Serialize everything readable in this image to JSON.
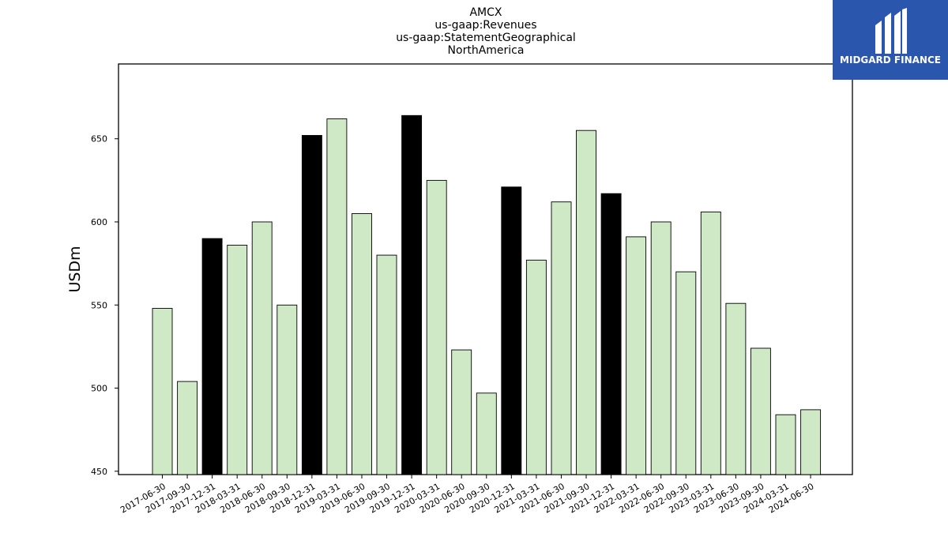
{
  "chart_data": {
    "type": "bar",
    "title_lines": [
      "AMCX",
      "us-gaap:Revenues",
      "us-gaap:StatementGeographical",
      "NorthAmerica"
    ],
    "xlabel": "",
    "ylabel": "USDm",
    "ylim": [
      448,
      695
    ],
    "yticks": [
      450,
      500,
      550,
      600,
      650
    ],
    "grid": false,
    "categories": [
      "2017-06-30",
      "2017-09-30",
      "2017-12-31",
      "2018-03-31",
      "2018-06-30",
      "2018-09-30",
      "2018-12-31",
      "2019-03-31",
      "2019-06-30",
      "2019-09-30",
      "2019-12-31",
      "2020-03-31",
      "2020-06-30",
      "2020-09-30",
      "2020-12-31",
      "2021-03-31",
      "2021-06-30",
      "2021-09-30",
      "2021-12-31",
      "2022-03-31",
      "2022-06-30",
      "2022-09-30",
      "2023-03-31",
      "2023-06-30",
      "2023-09-30",
      "2024-03-31",
      "2024-06-30"
    ],
    "values": [
      548,
      504,
      590,
      586,
      600,
      550,
      652,
      662,
      605,
      580,
      664,
      625,
      523,
      497,
      621,
      577,
      612,
      655,
      617,
      591,
      600,
      570,
      606,
      551,
      524,
      484,
      487
    ],
    "highlight": [
      2,
      6,
      10,
      14,
      18
    ],
    "colors": {
      "normal": "#cfe9c7",
      "highlight": "#000000",
      "edge": "#000000"
    }
  },
  "logo": {
    "text": "MIDGARD FINANCE",
    "color": "#2b56ae"
  }
}
